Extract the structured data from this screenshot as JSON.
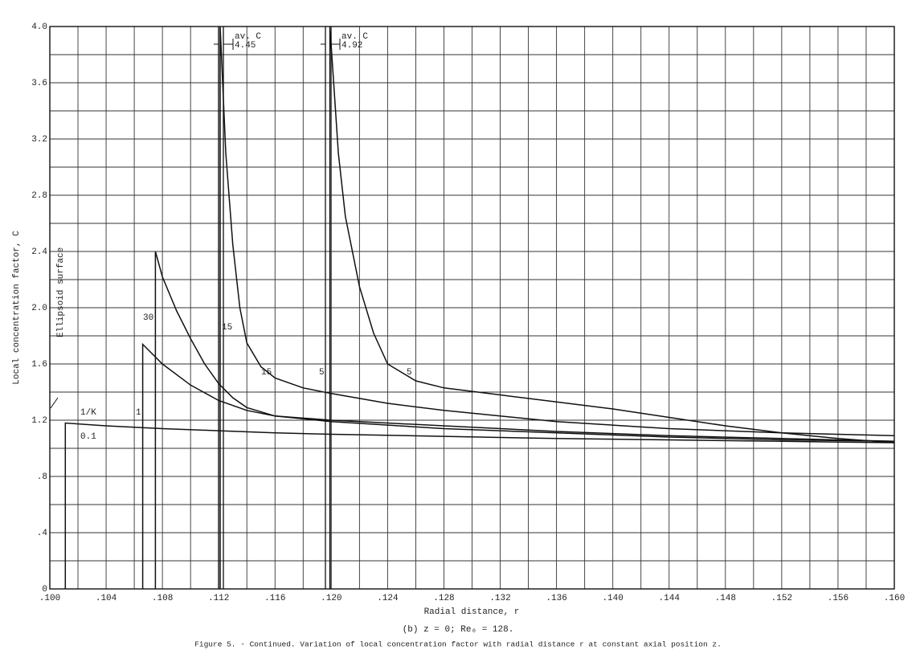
{
  "chart_data": {
    "type": "line",
    "subtitle": "(b) z = 0; Re₀ = 128.",
    "caption": "Figure 5. - Continued.  Variation of local concentration factor with radial distance  r  at constant axial position  z.",
    "x_label": "Radial distance, r",
    "y_label": "Local concentration factor, C",
    "xlim": [
      0.1,
      0.16
    ],
    "ylim": [
      0,
      4
    ],
    "xticks": [
      {
        "value": 0.1,
        "label": ".100"
      },
      {
        "value": 0.104,
        "label": ".104"
      },
      {
        "value": 0.108,
        "label": ".108"
      },
      {
        "value": 0.112,
        "label": ".112"
      },
      {
        "value": 0.116,
        "label": ".116"
      },
      {
        "value": 0.12,
        "label": ".120"
      },
      {
        "value": 0.124,
        "label": ".124"
      },
      {
        "value": 0.128,
        "label": ".128"
      },
      {
        "value": 0.132,
        "label": ".132"
      },
      {
        "value": 0.136,
        "label": ".136"
      },
      {
        "value": 0.14,
        "label": ".140"
      },
      {
        "value": 0.144,
        "label": ".144"
      },
      {
        "value": 0.148,
        "label": ".148"
      },
      {
        "value": 0.152,
        "label": ".152"
      },
      {
        "value": 0.156,
        "label": ".156"
      },
      {
        "value": 0.16,
        "label": ".160"
      }
    ],
    "yticks": [
      0,
      {
        "value": 0.4,
        "label": ".4"
      },
      {
        "value": 0.8,
        "label": ".8"
      },
      1.2,
      1.6,
      {
        "value": 2,
        "label": "2.0"
      },
      2.4,
      2.8,
      3.2,
      3.6,
      {
        "value": 4,
        "label": "4.0"
      }
    ],
    "minor_xgrid": [
      0.102,
      0.106,
      0.11,
      0.114,
      0.118,
      0.122,
      0.126,
      0.13,
      0.134,
      0.138,
      0.142,
      0.146,
      0.15,
      0.154,
      0.158
    ],
    "minor_ygrid": [
      0.2,
      0.6,
      1,
      1.4,
      1.8,
      2.2,
      2.6,
      3,
      3.4,
      3.8
    ],
    "grid": true,
    "annotations": [
      "av. C",
      "4.45",
      "av. C",
      "4.92",
      "1/K",
      "Ellipsoid surface"
    ],
    "series": [
      {
        "name": "0.1",
        "color": "#111111",
        "x": [
          0.1011,
          0.1011,
          0.104,
          0.108,
          0.112,
          0.116,
          0.12,
          0.128,
          0.136,
          0.144,
          0.152,
          0.16
        ],
        "values": [
          0,
          1.18,
          1.16,
          1.14,
          1.125,
          1.11,
          1.1,
          1.085,
          1.07,
          1.06,
          1.05,
          1.04
        ]
      },
      {
        "name": "1",
        "color": "#111111",
        "x": [
          0.1066,
          0.1066,
          0.108,
          0.11,
          0.112,
          0.114,
          0.116,
          0.12,
          0.128,
          0.136,
          0.144,
          0.152,
          0.16
        ],
        "values": [
          0,
          1.74,
          1.6,
          1.45,
          1.34,
          1.27,
          1.23,
          1.19,
          1.14,
          1.11,
          1.08,
          1.06,
          1.05
        ]
      },
      {
        "name": "30",
        "color": "#111111",
        "x": [
          0.1075,
          0.1075,
          0.108,
          0.109,
          0.11,
          0.111,
          0.112,
          0.113,
          0.114,
          0.116,
          0.12,
          0.128,
          0.136,
          0.144,
          0.152,
          0.16
        ],
        "values": [
          0,
          2.4,
          2.22,
          1.98,
          1.78,
          1.6,
          1.46,
          1.36,
          1.29,
          1.23,
          1.2,
          1.16,
          1.12,
          1.09,
          1.07,
          1.05
        ]
      },
      {
        "name": "15",
        "color": "#111111",
        "x": [
          0.1121,
          0.1121,
          0.1125,
          0.113,
          0.1135,
          0.114,
          0.115,
          0.116,
          0.118,
          0.12,
          0.124,
          0.128,
          0.136,
          0.144,
          0.152,
          0.16
        ],
        "values": [
          0,
          4,
          3.1,
          2.45,
          2.0,
          1.75,
          1.58,
          1.5,
          1.43,
          1.39,
          1.32,
          1.27,
          1.19,
          1.14,
          1.11,
          1.09
        ]
      },
      {
        "name": "5",
        "color": "#111111",
        "x": [
          0.1199,
          0.1199,
          0.1205,
          0.121,
          0.122,
          0.123,
          0.124,
          0.126,
          0.128,
          0.132,
          0.136,
          0.14,
          0.144,
          0.148,
          0.152,
          0.156,
          0.16
        ],
        "values": [
          0,
          4,
          3.1,
          2.65,
          2.15,
          1.82,
          1.6,
          1.48,
          1.43,
          1.38,
          1.33,
          1.28,
          1.22,
          1.16,
          1.11,
          1.07,
          1.04
        ]
      }
    ]
  }
}
